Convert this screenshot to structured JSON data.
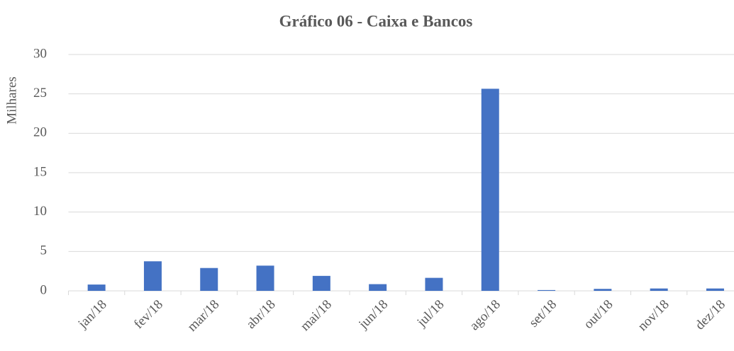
{
  "chart_data": {
    "type": "bar",
    "title": "Gráfico 06 - Caixa e Bancos",
    "y_label": "Milhares",
    "categories": [
      "jan/18",
      "fev/18",
      "mar/18",
      "abr/18",
      "mai/18",
      "jun/18",
      "jul/18",
      "ago/18",
      "set/18",
      "out/18",
      "nov/18",
      "dez/18"
    ],
    "values": [
      0.8,
      3.75,
      2.9,
      3.2,
      1.9,
      0.85,
      1.65,
      25.65,
      0.1,
      0.25,
      0.3,
      0.3
    ],
    "color": "#4472c4",
    "ylim": [
      0,
      30
    ],
    "yticks": [
      0,
      5,
      10,
      15,
      20,
      25,
      30
    ],
    "grid": true
  }
}
